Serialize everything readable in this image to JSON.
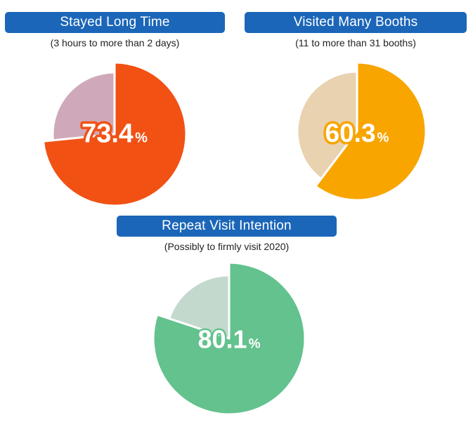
{
  "chart_data": [
    {
      "type": "pie",
      "title": "Stayed Long Time",
      "subtitle": "(3 hours to more than 2 days)",
      "value": 73.4,
      "value_label": "73.4",
      "unit": "%",
      "colors": {
        "main": "#f25114",
        "rest": "#cfa9b9",
        "outline": "#f25114"
      }
    },
    {
      "type": "pie",
      "title": "Visited Many Booths",
      "subtitle": "(11 to more than 31 booths)",
      "value": 60.3,
      "value_label": "60.3",
      "unit": "%",
      "colors": {
        "main": "#f8a500",
        "rest": "#e8d2b0",
        "outline": "#f8a500"
      }
    },
    {
      "type": "pie",
      "title": "Repeat Visit Intention",
      "subtitle": "(Possibly to firmly visit 2020)",
      "value": 80.1,
      "value_label": "80.1",
      "unit": "%",
      "colors": {
        "main": "#63c28d",
        "rest": "#c4d9ce",
        "outline": "#63c28d"
      }
    }
  ]
}
